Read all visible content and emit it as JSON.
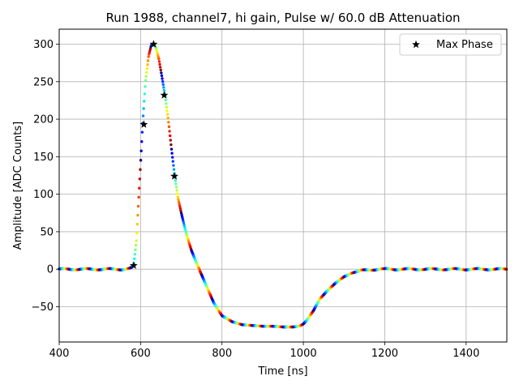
{
  "chart_data": {
    "type": "scatter",
    "title": "Run 1988, channel7, hi gain, Pulse w/ 60.0 dB Attenuation",
    "xlabel": "Time [ns]",
    "ylabel": "Amplitude [ADC Counts]",
    "xlim": [
      400,
      1500
    ],
    "ylim": [
      -97,
      320
    ],
    "xticks": [
      400,
      600,
      800,
      1000,
      1200,
      1400
    ],
    "xtick_labels": [
      "400",
      "600",
      "800",
      "1000",
      "1200",
      "1400"
    ],
    "yticks": [
      -50,
      0,
      50,
      100,
      150,
      200,
      250,
      300
    ],
    "ytick_labels": [
      "−50",
      "0",
      "50",
      "100",
      "150",
      "200",
      "250",
      "300"
    ],
    "grid": true,
    "legend": {
      "placement": "top-right",
      "entries": [
        {
          "label": "Max Phase",
          "marker": "star",
          "color": "#000000"
        }
      ]
    },
    "pulse_curve": {
      "x": [
        400,
        560,
        575,
        583,
        590,
        597,
        605,
        612,
        620,
        626,
        632,
        638,
        645,
        652,
        660,
        668,
        676,
        684,
        692,
        700,
        712,
        725,
        740,
        760,
        780,
        800,
        825,
        850,
        875,
        900,
        925,
        950,
        975,
        990,
        1000,
        1010,
        1025,
        1040,
        1060,
        1080,
        1100,
        1120,
        1140,
        1160,
        1180,
        1200,
        1300,
        1400,
        1500
      ],
      "y": [
        0,
        0,
        1,
        5,
        40,
        110,
        193,
        250,
        285,
        298,
        300,
        295,
        280,
        258,
        232,
        200,
        160,
        124,
        95,
        75,
        48,
        25,
        5,
        -20,
        -45,
        -62,
        -70,
        -74,
        -75,
        -76,
        -76,
        -77,
        -77,
        -76,
        -73,
        -67,
        -55,
        -40,
        -28,
        -18,
        -10,
        -5,
        -2,
        -1,
        0,
        0,
        0,
        0,
        0
      ]
    },
    "max_phase_points": {
      "name": "Max Phase",
      "x": [
        583,
        608,
        632,
        658,
        683
      ],
      "y": [
        5,
        193,
        300,
        232,
        124
      ]
    },
    "colormap": "jet"
  }
}
